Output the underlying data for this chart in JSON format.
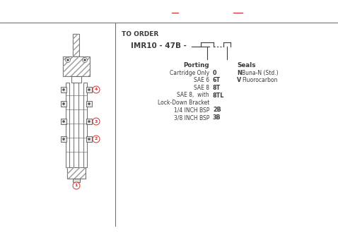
{
  "bg_color": "#ffffff",
  "text_color": "#3a3a3a",
  "gray": "#555555",
  "light_gray": "#aaaaaa",
  "red_color": "#cc3333",
  "line_color": "#666666",
  "title_text": "TO ORDER",
  "model_text": "IMR10 - 47B -",
  "porting_label": "Porting",
  "porting_items": [
    [
      "Cartridge Only",
      "0"
    ],
    [
      "SAE 6",
      "6T"
    ],
    [
      "SAE 8",
      "8T"
    ],
    [
      "SAE 8,  with",
      "8TL"
    ],
    [
      "Lock-Down Bracket",
      ""
    ],
    [
      "1/4 INCH BSP",
      "2B"
    ],
    [
      "3/8 INCH BSP",
      "3B"
    ]
  ],
  "seals_label": "Seals",
  "seals_items": [
    [
      "N",
      "Buna-N (Std.)"
    ],
    [
      "V",
      "Fluorocarbon"
    ]
  ]
}
